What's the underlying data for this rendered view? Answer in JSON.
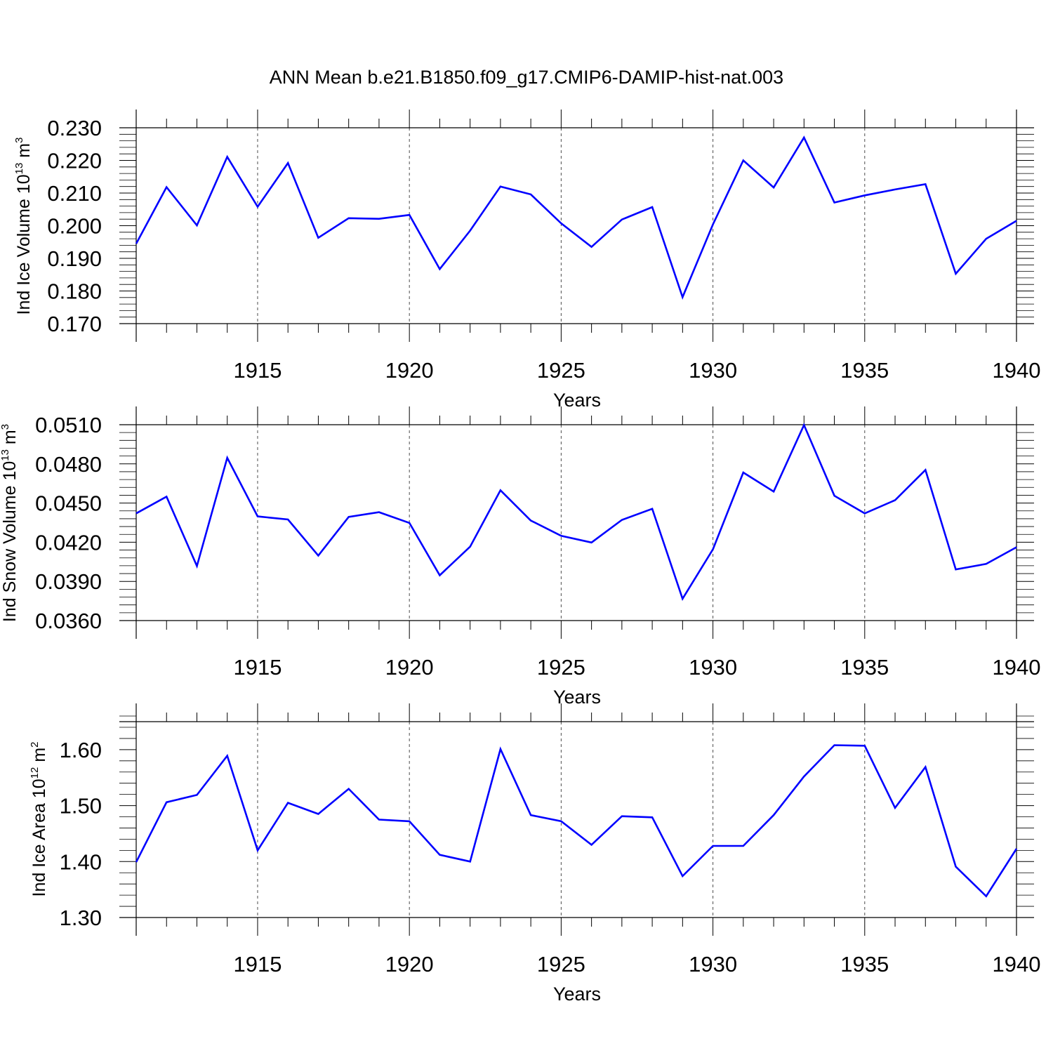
{
  "title": "ANN Mean b.e21.B1850.f09_g17.CMIP6-DAMIP-hist-nat.003",
  "colors": {
    "line": "#0000ff",
    "axis": "#000000",
    "grid": "#000000"
  },
  "chart_data": [
    {
      "type": "line",
      "name": "ice-volume",
      "ylabel": {
        "main": "Ind Ice Volume 10",
        "exp": "13",
        "unit": " m",
        "unit_exp": "3"
      },
      "xlabel": "Years",
      "xlim": [
        1911,
        1940
      ],
      "ylim": [
        0.17,
        0.23
      ],
      "x_ticks": [
        1915,
        1920,
        1925,
        1930,
        1935,
        1940
      ],
      "x_tick_labels": [
        "1915",
        "1920",
        "1925",
        "1930",
        "1935",
        "1940"
      ],
      "y_ticks": [
        0.17,
        0.18,
        0.19,
        0.2,
        0.21,
        0.22,
        0.23
      ],
      "y_tick_labels": [
        "0.170",
        "0.180",
        "0.190",
        "0.200",
        "0.210",
        "0.220",
        "0.230"
      ],
      "grid": "vertical dashed at major x ticks",
      "x": [
        1911,
        1912,
        1913,
        1914,
        1915,
        1916,
        1917,
        1918,
        1919,
        1920,
        1921,
        1922,
        1923,
        1924,
        1925,
        1926,
        1927,
        1928,
        1929,
        1930,
        1931,
        1932,
        1933,
        1934,
        1935,
        1936,
        1937,
        1938,
        1939,
        1940
      ],
      "values": [
        0.1945,
        0.2118,
        0.2001,
        0.2211,
        0.2058,
        0.2192,
        0.1963,
        0.2023,
        0.2021,
        0.2033,
        0.1867,
        0.1985,
        0.212,
        0.2096,
        0.2007,
        0.1935,
        0.2019,
        0.2057,
        0.1781,
        0.2004,
        0.22,
        0.2117,
        0.227,
        0.2071,
        0.2093,
        0.2111,
        0.2127,
        0.1853,
        0.196,
        0.2015
      ]
    },
    {
      "type": "line",
      "name": "snow-volume",
      "ylabel": {
        "main": "Ind Snow Volume 10",
        "exp": "13",
        "unit": " m",
        "unit_exp": "3"
      },
      "xlabel": "Years",
      "xlim": [
        1911,
        1940
      ],
      "ylim": [
        0.036,
        0.051
      ],
      "x_ticks": [
        1915,
        1920,
        1925,
        1930,
        1935,
        1940
      ],
      "x_tick_labels": [
        "1915",
        "1920",
        "1925",
        "1930",
        "1935",
        "1940"
      ],
      "y_ticks": [
        0.036,
        0.039,
        0.042,
        0.045,
        0.048,
        0.051
      ],
      "y_tick_labels": [
        "0.0360",
        "0.0390",
        "0.0420",
        "0.0450",
        "0.0480",
        "0.0510"
      ],
      "grid": "vertical dashed at major x ticks",
      "x": [
        1911,
        1912,
        1913,
        1914,
        1915,
        1916,
        1917,
        1918,
        1919,
        1920,
        1921,
        1922,
        1923,
        1924,
        1925,
        1926,
        1927,
        1928,
        1929,
        1930,
        1931,
        1932,
        1933,
        1934,
        1935,
        1936,
        1937,
        1938,
        1939,
        1940
      ],
      "values": [
        0.04421,
        0.04549,
        0.04018,
        0.04846,
        0.04398,
        0.04374,
        0.04098,
        0.04394,
        0.0443,
        0.04348,
        0.03947,
        0.04166,
        0.04598,
        0.04366,
        0.04249,
        0.04198,
        0.04371,
        0.04456,
        0.03767,
        0.04146,
        0.04734,
        0.04588,
        0.05098,
        0.04556,
        0.04421,
        0.04522,
        0.04753,
        0.03992,
        0.04034,
        0.04162
      ]
    },
    {
      "type": "line",
      "name": "ice-area",
      "ylabel": {
        "main": "Ind Ice Area 10",
        "exp": "12",
        "unit": " m",
        "unit_exp": "2"
      },
      "xlabel": "Years",
      "xlim": [
        1911,
        1940
      ],
      "ylim": [
        1.3,
        1.65
      ],
      "x_ticks": [
        1915,
        1920,
        1925,
        1930,
        1935,
        1940
      ],
      "x_tick_labels": [
        "1915",
        "1920",
        "1925",
        "1930",
        "1935",
        "1940"
      ],
      "y_ticks": [
        1.3,
        1.4,
        1.5,
        1.6
      ],
      "y_tick_labels": [
        "1.30",
        "1.40",
        "1.50",
        "1.60"
      ],
      "grid": "vertical dashed at major x ticks",
      "x": [
        1911,
        1912,
        1913,
        1914,
        1915,
        1916,
        1917,
        1918,
        1919,
        1920,
        1921,
        1922,
        1923,
        1924,
        1925,
        1926,
        1927,
        1928,
        1929,
        1930,
        1931,
        1932,
        1933,
        1934,
        1935,
        1936,
        1937,
        1938,
        1939,
        1940
      ],
      "values": [
        1.399,
        1.506,
        1.519,
        1.589,
        1.42,
        1.505,
        1.485,
        1.53,
        1.475,
        1.472,
        1.412,
        1.4,
        1.601,
        1.483,
        1.472,
        1.43,
        1.481,
        1.479,
        1.374,
        1.428,
        1.428,
        1.483,
        1.552,
        1.608,
        1.607,
        1.496,
        1.569,
        1.391,
        1.338,
        1.423
      ]
    }
  ]
}
